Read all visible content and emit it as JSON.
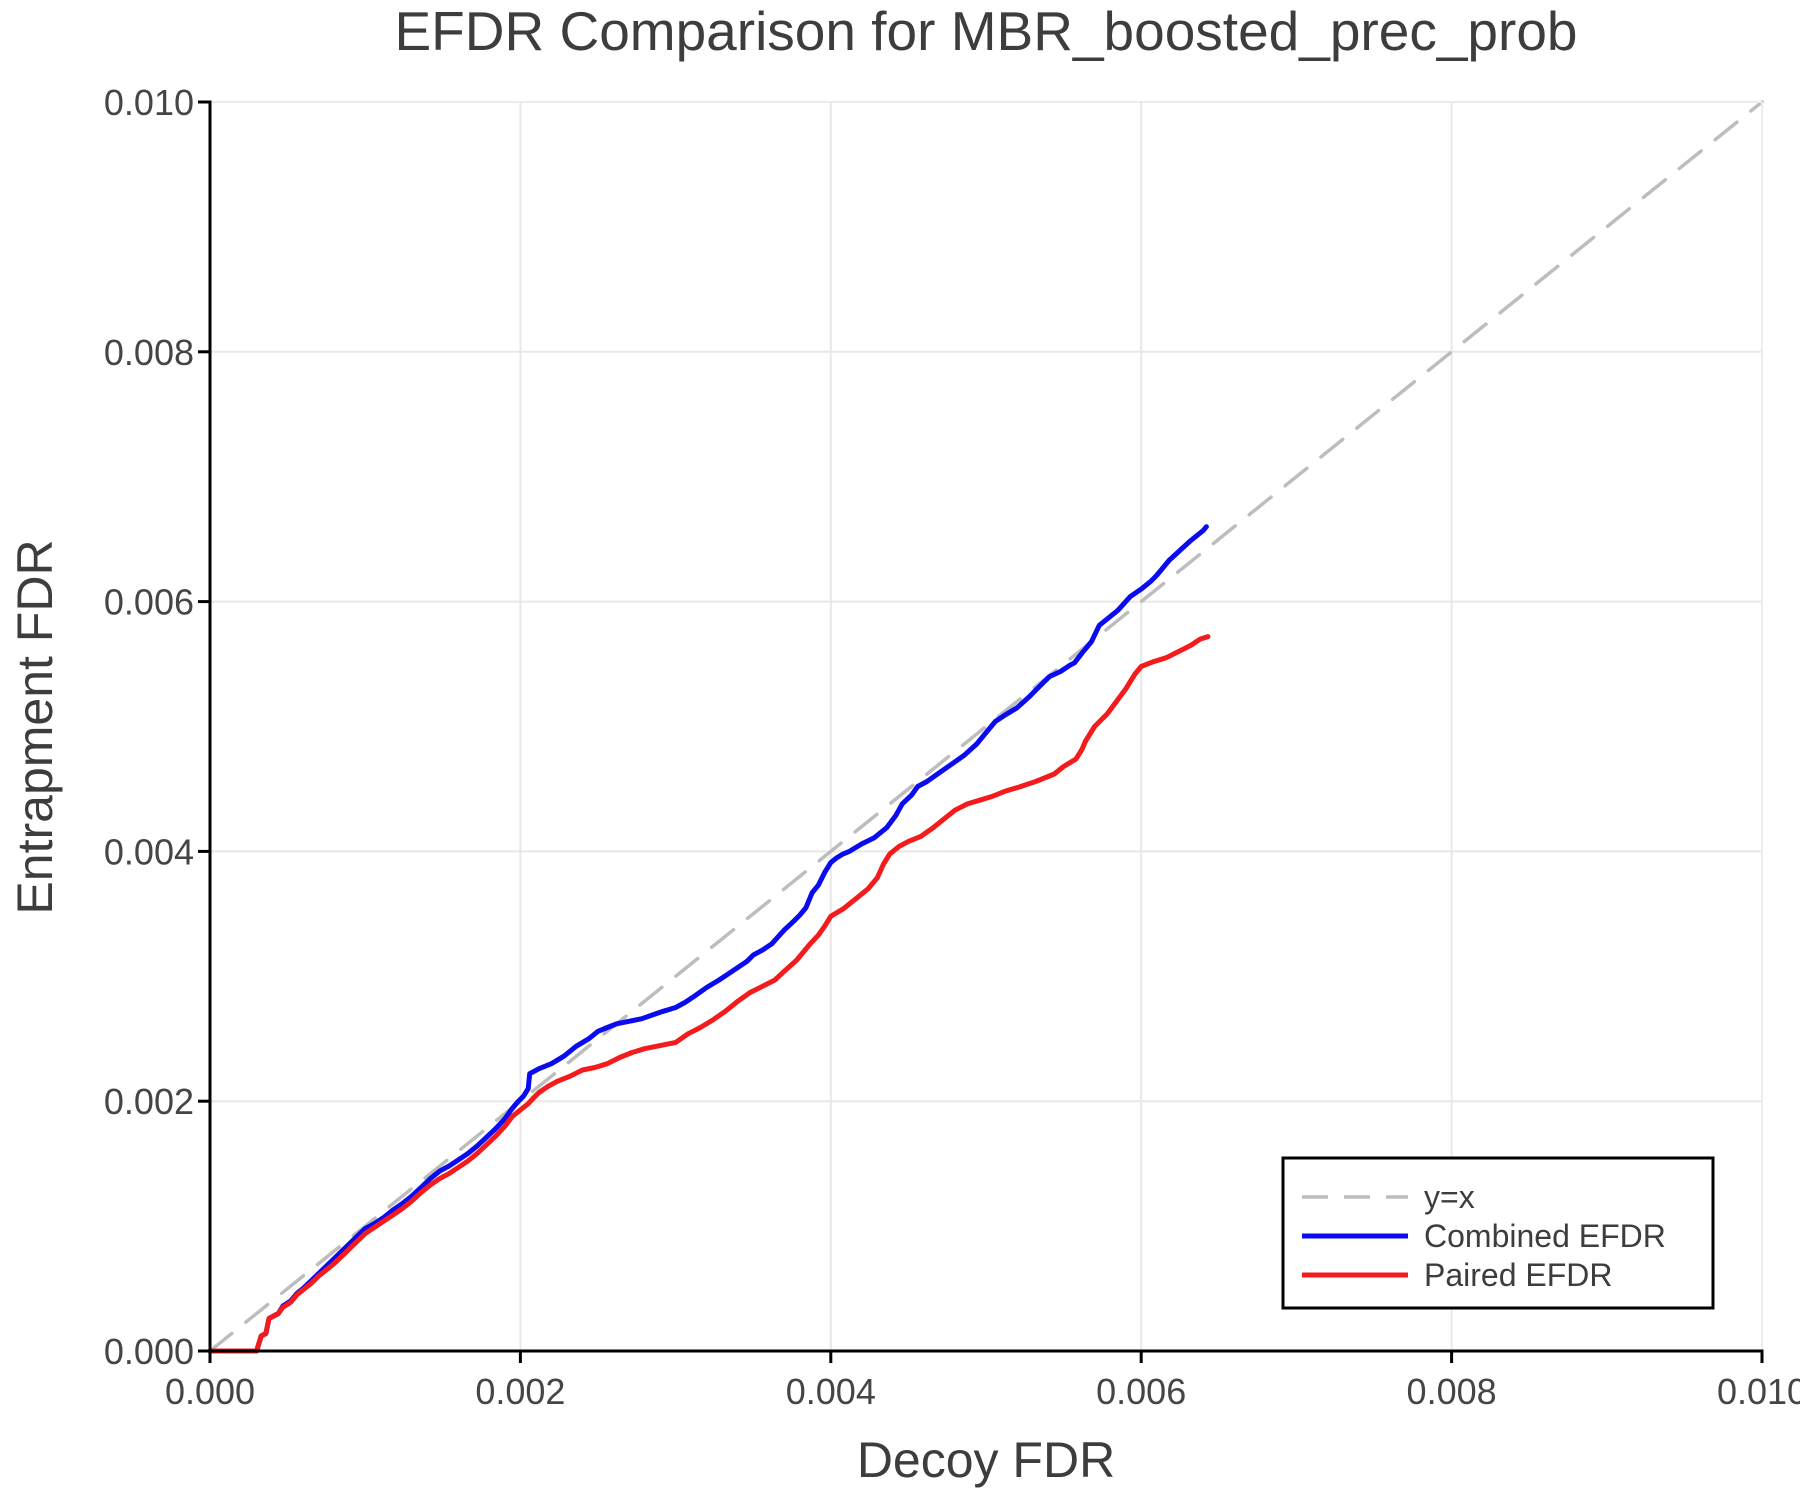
{
  "chart_data": {
    "type": "line",
    "title": "EFDR Comparison for MBR_boosted_prec_prob",
    "xlabel": "Decoy FDR",
    "ylabel": "Entrapment FDR",
    "xlim": [
      0.0,
      0.01
    ],
    "ylim": [
      0.0,
      0.01
    ],
    "grid": true,
    "legend_position": "lower right",
    "xticks": [
      0.0,
      0.002,
      0.004,
      0.006,
      0.008,
      0.01
    ],
    "xtick_labels": [
      "0.000",
      "0.002",
      "0.004",
      "0.006",
      "0.008",
      "0.010"
    ],
    "yticks": [
      0.0,
      0.002,
      0.004,
      0.006,
      0.008,
      0.01
    ],
    "ytick_labels": [
      "0.000",
      "0.002",
      "0.004",
      "0.006",
      "0.008",
      "0.010"
    ],
    "colors": {
      "identity_line": "#bdbdbd",
      "combined": "#0b0bef",
      "paired": "#f31b1b",
      "grid": "#e8e8e8",
      "spine": "#000000",
      "faint_spine": "#ececec",
      "text": "#3d3d3d"
    },
    "series": [
      {
        "name": "y=x",
        "color": "#bdbdbd",
        "dash": true,
        "width": 3.5,
        "points": [
          [
            0.0,
            0.0
          ],
          [
            0.01,
            0.01
          ]
        ]
      },
      {
        "name": "Combined EFDR",
        "color": "#0b0bef",
        "dash": false,
        "width": 5,
        "points": [
          [
            0.0,
            0.0
          ],
          [
            0.0003,
            0.0
          ],
          [
            0.00033,
            0.00012
          ],
          [
            0.00036,
            0.00014
          ],
          [
            0.00038,
            0.00026
          ],
          [
            0.00044,
            0.0003
          ],
          [
            0.00047,
            0.00036
          ],
          [
            0.00052,
            0.0004
          ],
          [
            0.00056,
            0.00046
          ],
          [
            0.0006,
            0.0005
          ],
          [
            0.00065,
            0.00056
          ],
          [
            0.0007,
            0.00062
          ],
          [
            0.00075,
            0.00068
          ],
          [
            0.0008,
            0.00074
          ],
          [
            0.00085,
            0.0008
          ],
          [
            0.0009,
            0.00086
          ],
          [
            0.00095,
            0.00092
          ],
          [
            0.001,
            0.00098
          ],
          [
            0.00106,
            0.00102
          ],
          [
            0.00112,
            0.00107
          ],
          [
            0.00118,
            0.00113
          ],
          [
            0.00124,
            0.00118
          ],
          [
            0.0013,
            0.00124
          ],
          [
            0.00136,
            0.00131
          ],
          [
            0.00142,
            0.00138
          ],
          [
            0.00148,
            0.00144
          ],
          [
            0.00154,
            0.00148
          ],
          [
            0.0016,
            0.00153
          ],
          [
            0.00166,
            0.00158
          ],
          [
            0.00172,
            0.00164
          ],
          [
            0.00178,
            0.00171
          ],
          [
            0.00184,
            0.00178
          ],
          [
            0.0019,
            0.00186
          ],
          [
            0.00194,
            0.00193
          ],
          [
            0.00198,
            0.00199
          ],
          [
            0.00202,
            0.00204
          ],
          [
            0.00205,
            0.0021
          ],
          [
            0.00206,
            0.00222
          ],
          [
            0.00212,
            0.00226
          ],
          [
            0.0022,
            0.0023
          ],
          [
            0.00228,
            0.00236
          ],
          [
            0.00236,
            0.00244
          ],
          [
            0.00244,
            0.0025
          ],
          [
            0.0025,
            0.00256
          ],
          [
            0.00256,
            0.00259
          ],
          [
            0.00262,
            0.00262
          ],
          [
            0.0027,
            0.00264
          ],
          [
            0.00278,
            0.00266
          ],
          [
            0.00285,
            0.00269
          ],
          [
            0.00292,
            0.00272
          ],
          [
            0.003,
            0.00275
          ],
          [
            0.00306,
            0.00279
          ],
          [
            0.00312,
            0.00284
          ],
          [
            0.0032,
            0.00291
          ],
          [
            0.00328,
            0.00297
          ],
          [
            0.00334,
            0.00302
          ],
          [
            0.0034,
            0.00307
          ],
          [
            0.00346,
            0.00312
          ],
          [
            0.0035,
            0.00317
          ],
          [
            0.00356,
            0.00321
          ],
          [
            0.00362,
            0.00326
          ],
          [
            0.0037,
            0.00337
          ],
          [
            0.00376,
            0.00344
          ],
          [
            0.0038,
            0.00349
          ],
          [
            0.00384,
            0.00355
          ],
          [
            0.00388,
            0.00367
          ],
          [
            0.00392,
            0.00373
          ],
          [
            0.00396,
            0.00383
          ],
          [
            0.004,
            0.00391
          ],
          [
            0.00404,
            0.00395
          ],
          [
            0.00408,
            0.00398
          ],
          [
            0.00412,
            0.004
          ],
          [
            0.0042,
            0.00406
          ],
          [
            0.00428,
            0.00411
          ],
          [
            0.00436,
            0.00419
          ],
          [
            0.00442,
            0.00429
          ],
          [
            0.00446,
            0.00438
          ],
          [
            0.00452,
            0.00445
          ],
          [
            0.00456,
            0.00452
          ],
          [
            0.00462,
            0.00456
          ],
          [
            0.0047,
            0.00463
          ],
          [
            0.00478,
            0.0047
          ],
          [
            0.00486,
            0.00477
          ],
          [
            0.00494,
            0.00486
          ],
          [
            0.005,
            0.00495
          ],
          [
            0.00506,
            0.00504
          ],
          [
            0.00512,
            0.00509
          ],
          [
            0.0052,
            0.00515
          ],
          [
            0.00528,
            0.00524
          ],
          [
            0.00536,
            0.00534
          ],
          [
            0.00541,
            0.0054
          ],
          [
            0.00548,
            0.00544
          ],
          [
            0.00554,
            0.00549
          ],
          [
            0.00557,
            0.00551
          ],
          [
            0.00562,
            0.00559
          ],
          [
            0.00568,
            0.00568
          ],
          [
            0.00573,
            0.00581
          ],
          [
            0.00578,
            0.00586
          ],
          [
            0.00585,
            0.00593
          ],
          [
            0.00593,
            0.00604
          ],
          [
            0.006,
            0.0061
          ],
          [
            0.00606,
            0.00616
          ],
          [
            0.0061,
            0.00621
          ],
          [
            0.00618,
            0.00633
          ],
          [
            0.00625,
            0.00641
          ],
          [
            0.00632,
            0.00649
          ],
          [
            0.00636,
            0.00653
          ],
          [
            0.0064,
            0.00657
          ],
          [
            0.00642,
            0.0066
          ]
        ]
      },
      {
        "name": "Paired EFDR",
        "color": "#f31b1b",
        "dash": false,
        "width": 5,
        "points": [
          [
            0.0,
            0.0
          ],
          [
            0.0003,
            0.0
          ],
          [
            0.00033,
            0.00012
          ],
          [
            0.00036,
            0.00014
          ],
          [
            0.00038,
            0.00026
          ],
          [
            0.00044,
            0.0003
          ],
          [
            0.00047,
            0.00035
          ],
          [
            0.00052,
            0.00039
          ],
          [
            0.00056,
            0.00045
          ],
          [
            0.0006,
            0.00049
          ],
          [
            0.00065,
            0.00054
          ],
          [
            0.0007,
            0.0006
          ],
          [
            0.00075,
            0.00065
          ],
          [
            0.0008,
            0.0007
          ],
          [
            0.00085,
            0.00076
          ],
          [
            0.0009,
            0.00082
          ],
          [
            0.00095,
            0.00088
          ],
          [
            0.001,
            0.00094
          ],
          [
            0.00106,
            0.00099
          ],
          [
            0.00112,
            0.00104
          ],
          [
            0.00118,
            0.00109
          ],
          [
            0.00124,
            0.00114
          ],
          [
            0.0013,
            0.0012
          ],
          [
            0.00136,
            0.00127
          ],
          [
            0.00142,
            0.00133
          ],
          [
            0.00148,
            0.00138
          ],
          [
            0.00154,
            0.00142
          ],
          [
            0.0016,
            0.00147
          ],
          [
            0.00166,
            0.00152
          ],
          [
            0.00172,
            0.00158
          ],
          [
            0.00178,
            0.00165
          ],
          [
            0.00184,
            0.00172
          ],
          [
            0.0019,
            0.0018
          ],
          [
            0.00195,
            0.00188
          ],
          [
            0.002,
            0.00193
          ],
          [
            0.00205,
            0.00198
          ],
          [
            0.00208,
            0.00202
          ],
          [
            0.00212,
            0.00207
          ],
          [
            0.00218,
            0.00212
          ],
          [
            0.00224,
            0.00216
          ],
          [
            0.00232,
            0.0022
          ],
          [
            0.0024,
            0.00225
          ],
          [
            0.00248,
            0.00227
          ],
          [
            0.00256,
            0.0023
          ],
          [
            0.00264,
            0.00235
          ],
          [
            0.00272,
            0.00239
          ],
          [
            0.0028,
            0.00242
          ],
          [
            0.00288,
            0.00244
          ],
          [
            0.00296,
            0.00246
          ],
          [
            0.003,
            0.00247
          ],
          [
            0.00308,
            0.00254
          ],
          [
            0.00316,
            0.00259
          ],
          [
            0.00324,
            0.00265
          ],
          [
            0.00332,
            0.00272
          ],
          [
            0.0034,
            0.0028
          ],
          [
            0.00348,
            0.00287
          ],
          [
            0.00356,
            0.00292
          ],
          [
            0.00364,
            0.00297
          ],
          [
            0.0037,
            0.00304
          ],
          [
            0.00378,
            0.00313
          ],
          [
            0.00386,
            0.00325
          ],
          [
            0.00392,
            0.00333
          ],
          [
            0.00396,
            0.0034
          ],
          [
            0.004,
            0.00348
          ],
          [
            0.00408,
            0.00354
          ],
          [
            0.00416,
            0.00362
          ],
          [
            0.00424,
            0.0037
          ],
          [
            0.0043,
            0.00379
          ],
          [
            0.00434,
            0.0039
          ],
          [
            0.00438,
            0.00398
          ],
          [
            0.00444,
            0.00404
          ],
          [
            0.0045,
            0.00408
          ],
          [
            0.00458,
            0.00412
          ],
          [
            0.00466,
            0.00419
          ],
          [
            0.00474,
            0.00427
          ],
          [
            0.0048,
            0.00433
          ],
          [
            0.00488,
            0.00438
          ],
          [
            0.00496,
            0.00441
          ],
          [
            0.00504,
            0.00444
          ],
          [
            0.00512,
            0.00448
          ],
          [
            0.0052,
            0.00451
          ],
          [
            0.00532,
            0.00456
          ],
          [
            0.00544,
            0.00462
          ],
          [
            0.0055,
            0.00468
          ],
          [
            0.00558,
            0.00474
          ],
          [
            0.00562,
            0.00482
          ],
          [
            0.00564,
            0.00488
          ],
          [
            0.0057,
            0.005
          ],
          [
            0.00578,
            0.0051
          ],
          [
            0.00584,
            0.0052
          ],
          [
            0.0059,
            0.0053
          ],
          [
            0.00596,
            0.00542
          ],
          [
            0.006,
            0.00548
          ],
          [
            0.00608,
            0.00552
          ],
          [
            0.00616,
            0.00555
          ],
          [
            0.00624,
            0.0056
          ],
          [
            0.00632,
            0.00565
          ],
          [
            0.00638,
            0.0057
          ],
          [
            0.00643,
            0.00572
          ]
        ]
      }
    ]
  }
}
